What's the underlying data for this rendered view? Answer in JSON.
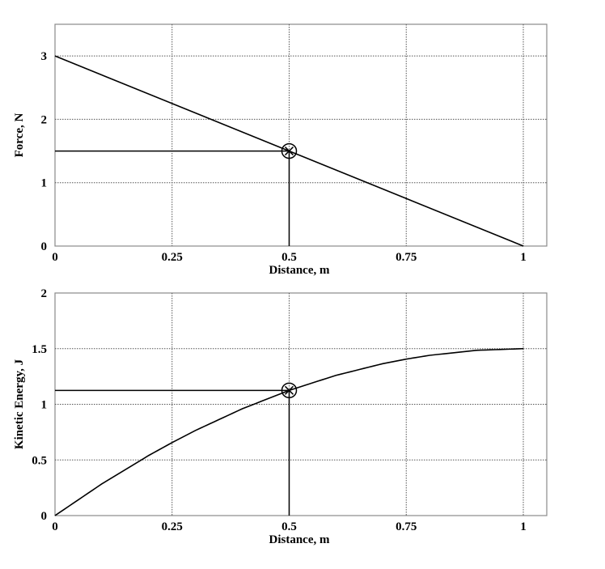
{
  "chart_data": [
    {
      "type": "line",
      "title": "",
      "xlabel": "Distance, m",
      "ylabel": "Force, N",
      "xlim": [
        0,
        1
      ],
      "ylim": [
        0,
        3.5
      ],
      "xticks": [
        "0",
        "0.25",
        "0.5",
        "0.75",
        "1"
      ],
      "yticks": [
        "0",
        "1",
        "2",
        "3"
      ],
      "grid": true,
      "series": [
        {
          "name": "Force",
          "x": [
            0,
            0.25,
            0.5,
            0.75,
            1
          ],
          "y": [
            3,
            2.25,
            1.5,
            0.75,
            0
          ]
        }
      ],
      "marker": {
        "x": 0.5,
        "y": 1.5,
        "style": "circle-x",
        "guide_lines": true
      }
    },
    {
      "type": "line",
      "title": "",
      "xlabel": "Distance, m",
      "ylabel": "Kinetic Energy, J",
      "xlim": [
        0,
        1
      ],
      "ylim": [
        0,
        2
      ],
      "xticks": [
        "0",
        "0.25",
        "0.5",
        "0.75",
        "1"
      ],
      "yticks": [
        "0",
        "0.5",
        "1",
        "1.5",
        "2"
      ],
      "grid": true,
      "series": [
        {
          "name": "Kinetic Energy",
          "x": [
            0,
            0.1,
            0.2,
            0.25,
            0.3,
            0.4,
            0.5,
            0.6,
            0.7,
            0.75,
            0.8,
            0.9,
            1.0
          ],
          "y": [
            0,
            0.285,
            0.54,
            0.656,
            0.765,
            0.96,
            1.125,
            1.26,
            1.365,
            1.406,
            1.44,
            1.485,
            1.5
          ]
        }
      ],
      "marker": {
        "x": 0.5,
        "y": 1.125,
        "style": "circle-x",
        "guide_lines": true
      }
    }
  ]
}
